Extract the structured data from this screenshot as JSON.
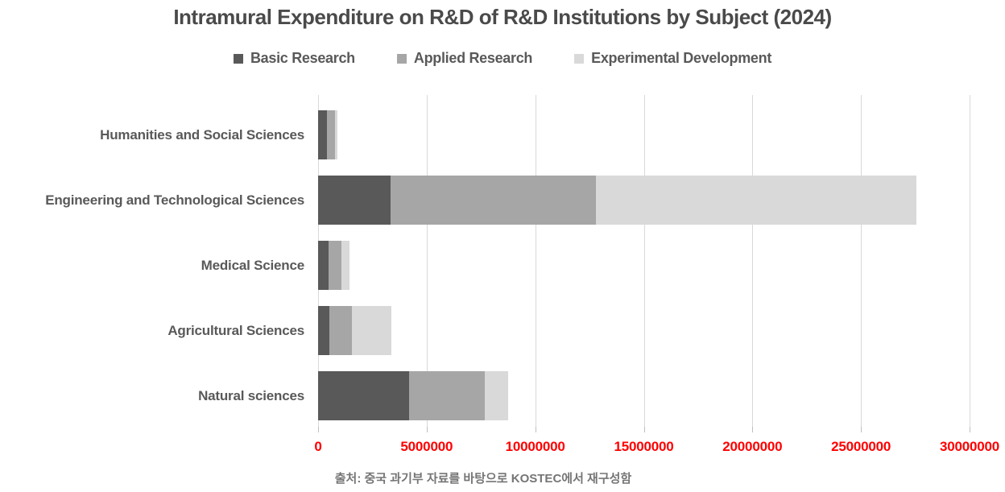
{
  "chart_data": {
    "type": "bar",
    "orientation": "horizontal",
    "stacked": true,
    "title": "Intramural Expenditure on R&D of R&D Institutions by Subject (2024)",
    "categories": [
      "Humanities and Social Sciences",
      "Engineering and Technological Sciences",
      "Medical Science",
      "Agricultural Sciences",
      "Natural sciences"
    ],
    "series": [
      {
        "name": "Basic Research",
        "color": "#595959",
        "values": [
          400000,
          3320000,
          500000,
          510000,
          4180000
        ]
      },
      {
        "name": "Applied Research",
        "color": "#a6a6a6",
        "values": [
          380000,
          9490000,
          590000,
          1040000,
          3480000
        ]
      },
      {
        "name": "Experimental Development",
        "color": "#d9d9d9",
        "values": [
          120000,
          14740000,
          340000,
          1830000,
          1090000
        ]
      }
    ],
    "xlim": [
      0,
      30000000
    ],
    "x_ticks": [
      0,
      5000000,
      10000000,
      15000000,
      20000000,
      25000000,
      30000000
    ],
    "x_tick_labels": [
      "0",
      "5000000",
      "10000000",
      "15000000",
      "20000000",
      "25000000",
      "30000000"
    ],
    "grid": "vertical-only",
    "legend_position": "top-center",
    "colors": {
      "title": "#4a4a4a",
      "category_label": "#595959",
      "axis_tick_label": "#ff0000",
      "gridline": "#d9d9d9",
      "caption": "#757575"
    }
  },
  "caption": "출처: 중국 과기부 자료를 바탕으로 KOSTEC에서 재구성함"
}
